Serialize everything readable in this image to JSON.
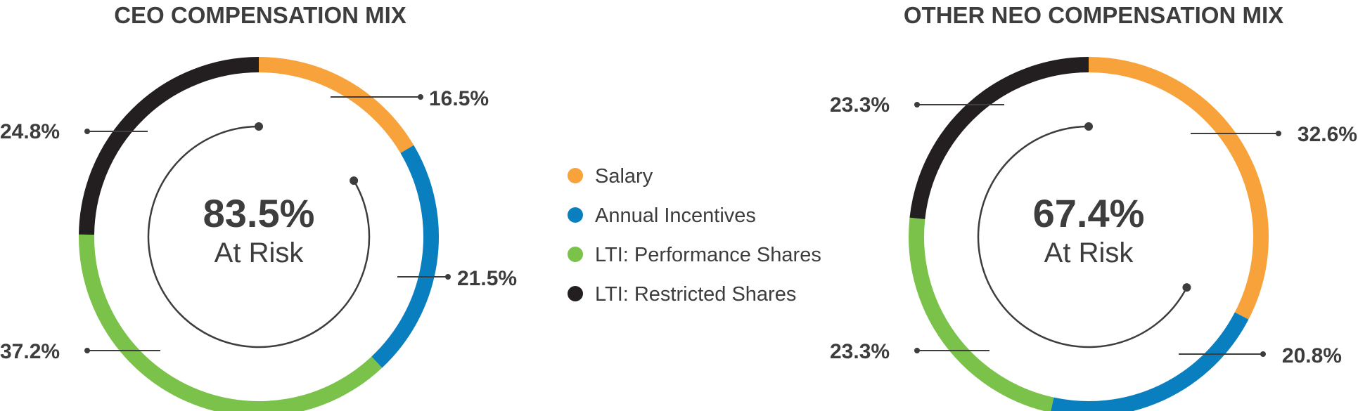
{
  "colors": {
    "salary": "#F7A23B",
    "annual": "#0A7FC0",
    "perf": "#7BC24A",
    "restricted": "#231F20",
    "text": "#3d3d3d",
    "line": "#3d3d3d"
  },
  "legend": [
    {
      "label": "Salary",
      "color_key": "salary"
    },
    {
      "label": "Annual Incentives",
      "color_key": "annual"
    },
    {
      "label": "LTI: Performance Shares",
      "color_key": "perf"
    },
    {
      "label": "LTI: Restricted Shares",
      "color_key": "restricted"
    }
  ],
  "chart_data": [
    {
      "type": "pie",
      "title": "CEO COMPENSATION MIX",
      "center_value": "83.5%",
      "center_label": "At Risk",
      "slices": [
        {
          "name": "Salary",
          "color_key": "salary",
          "value": 16.5,
          "label": "16.5%"
        },
        {
          "name": "Annual Incentives",
          "color_key": "annual",
          "value": 21.5,
          "label": "21.5%"
        },
        {
          "name": "LTI: Performance Shares",
          "color_key": "perf",
          "value": 37.2,
          "label": "37.2%"
        },
        {
          "name": "LTI: Restricted Shares",
          "color_key": "restricted",
          "value": 24.8,
          "label": "24.8%"
        }
      ],
      "at_risk_arc_percent": 83.5
    },
    {
      "type": "pie",
      "title": "OTHER NEO COMPENSATION MIX",
      "center_value": "67.4%",
      "center_label": "At Risk",
      "slices": [
        {
          "name": "Salary",
          "color_key": "salary",
          "value": 32.6,
          "label": "32.6%"
        },
        {
          "name": "Annual Incentives",
          "color_key": "annual",
          "value": 20.8,
          "label": "20.8%"
        },
        {
          "name": "LTI: Performance Shares",
          "color_key": "perf",
          "value": 23.3,
          "label": "23.3%"
        },
        {
          "name": "LTI: Restricted Shares",
          "color_key": "restricted",
          "value": 23.3,
          "label": "23.3%"
        }
      ],
      "at_risk_arc_percent": 67.4
    }
  ]
}
